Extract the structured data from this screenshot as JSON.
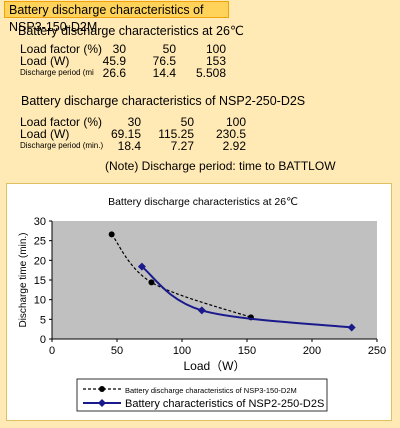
{
  "header": {
    "title": "Battery discharge characteristics of NSP3-150-D2M"
  },
  "table1": {
    "title": "Battery discharge characteristics at 26℃",
    "rows": [
      {
        "label": "Load factor (%)",
        "values": [
          "30",
          "50",
          "100"
        ]
      },
      {
        "label": "Load (W)",
        "values": [
          "45.9",
          "76.5",
          "153"
        ]
      },
      {
        "label": "Discharge period (mi",
        "values": [
          "26.6",
          "14.4",
          "5.508"
        ]
      }
    ]
  },
  "table2": {
    "title": "Battery discharge characteristics of NSP2-250-D2S",
    "rows": [
      {
        "label": "Load factor (%)",
        "values": [
          "30",
          "50",
          "100"
        ]
      },
      {
        "label": "Load (W)",
        "values": [
          "69.15",
          "115.25",
          "230.5"
        ]
      },
      {
        "label": "Discharge period (min.)",
        "values": [
          "18.4",
          "7.27",
          "2.92"
        ]
      }
    ]
  },
  "note": "(Note) Discharge period: time to BATTLOW",
  "chart_data": {
    "type": "line",
    "title": "Battery discharge characteristics at 26℃",
    "xlabel": "Load（W）",
    "ylabel": "Discharge time (min.)",
    "xlim": [
      0,
      250
    ],
    "ylim": [
      0,
      30
    ],
    "xticks": [
      "0",
      "50",
      "100",
      "150",
      "200",
      "250"
    ],
    "yticks": [
      "0",
      "5",
      "10",
      "15",
      "20",
      "25",
      "30"
    ],
    "grid": false,
    "legend": "bottom",
    "series": [
      {
        "name": "Battery discharge characteristics of NSP3-150-D2M",
        "x": [
          45.9,
          76.5,
          153
        ],
        "y": [
          26.6,
          14.4,
          5.508
        ],
        "color": "#000000",
        "style": "dashed",
        "marker": "circle"
      },
      {
        "name": "Battery characteristics of NSP2-250-D2S",
        "x": [
          69.15,
          115.25,
          230.5
        ],
        "y": [
          18.4,
          7.27,
          2.92
        ],
        "color": "#1a1a8c",
        "style": "solid",
        "marker": "diamond"
      }
    ],
    "colors": {
      "plot_bg": "#c0c0c0"
    }
  }
}
